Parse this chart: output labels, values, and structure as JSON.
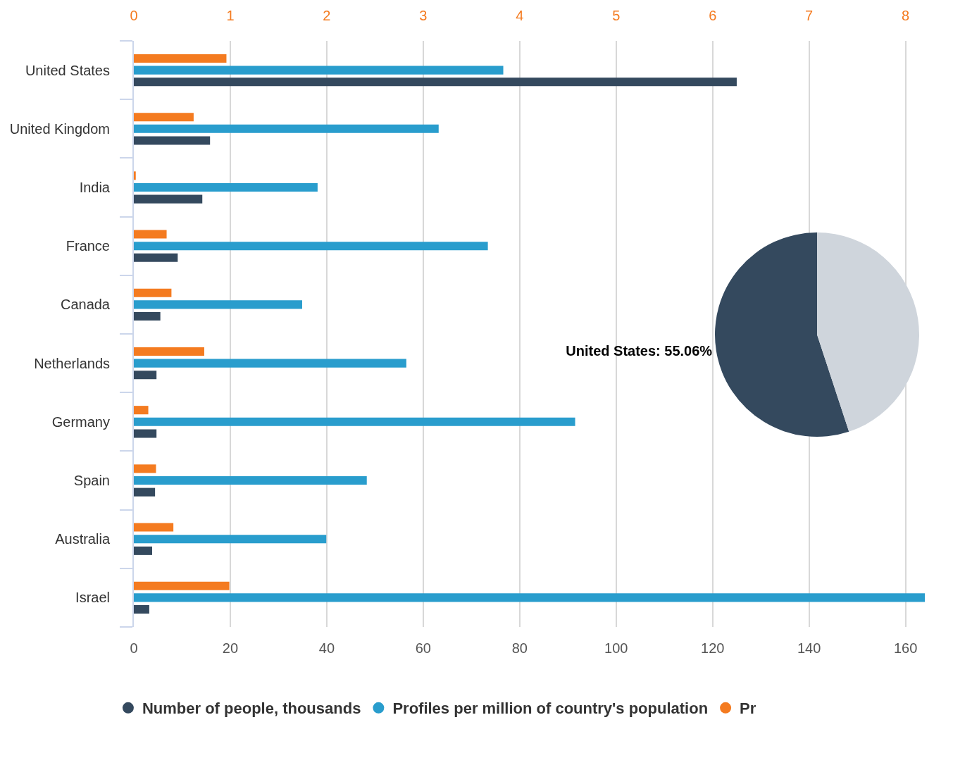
{
  "chart_data": [
    {
      "type": "bar",
      "orientation": "horizontal",
      "categories": [
        "United States",
        "United Kingdom",
        "India",
        "France",
        "Canada",
        "Netherlands",
        "Germany",
        "Spain",
        "Australia",
        "Israel"
      ],
      "series": [
        {
          "name": "Number of people, thousands",
          "color": "#34495e",
          "values": [
            125.0,
            15.8,
            14.2,
            9.1,
            5.5,
            4.7,
            4.7,
            4.4,
            3.8,
            3.2
          ]
        },
        {
          "name": "Profiles per million of country's population",
          "color": "#299dcd",
          "values": [
            76.6,
            63.2,
            38.1,
            73.4,
            34.9,
            56.5,
            91.5,
            48.3,
            39.9,
            164
          ]
        },
        {
          "name": "Pr",
          "color": "#f47b20",
          "axis": "x2",
          "values": [
            0.96,
            0.62,
            0.02,
            0.34,
            0.39,
            0.73,
            0.15,
            0.23,
            0.41,
            0.99
          ]
        }
      ],
      "xlim": [
        0,
        164
      ],
      "xticks": [
        0,
        20,
        40,
        60,
        80,
        100,
        120,
        140,
        160
      ],
      "x2lim": [
        0,
        8.2
      ],
      "x2ticks": [
        0,
        1,
        2,
        3,
        4,
        5,
        6,
        7,
        8
      ],
      "grid": "x",
      "legend": "bottom"
    },
    {
      "type": "pie",
      "categories": [
        "United States",
        null
      ],
      "values": [
        55.06,
        44.94
      ],
      "colors": [
        "#34495e",
        "#cfd5dc"
      ],
      "value_labels": [
        "55.06%",
        null
      ]
    }
  ]
}
